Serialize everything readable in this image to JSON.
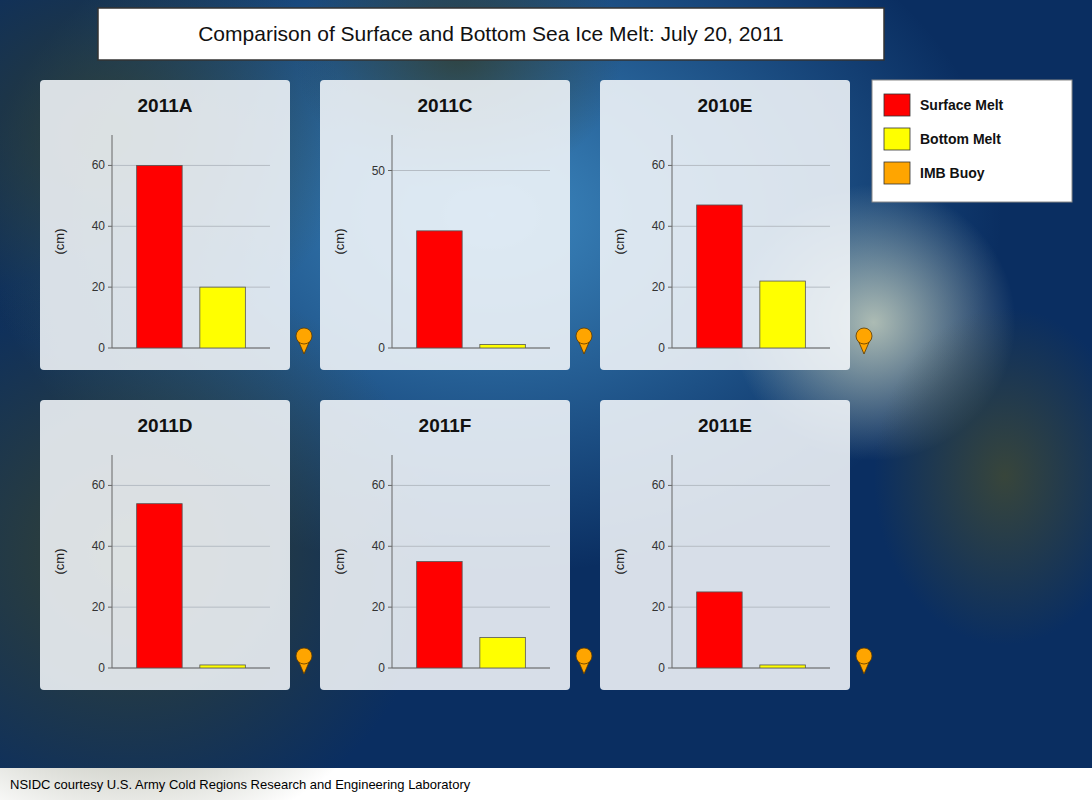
{
  "title": "Comparison of Surface and Bottom Sea Ice Melt: July 20, 2011",
  "subtitle": "NSIDC courtesy U.S. Army Cold Regions Research and Engineering Laboratory",
  "buoy": {
    "name": "IMB Buoy",
    "color": "#FFA500"
  },
  "chart_data": [
    {
      "type": "bar",
      "title": "2011A",
      "ylabel": "(cm)",
      "categories": [
        null
      ],
      "series": [
        {
          "name": "Surface Melt",
          "color": "#FF0000",
          "values": [
            60
          ]
        },
        {
          "name": "Bottom Melt",
          "color": "#FFFF00",
          "values": [
            20
          ]
        }
      ],
      "ylim": [
        0,
        70
      ],
      "yticks": [
        0,
        20,
        40,
        60
      ],
      "grid": true,
      "tick_labels": "y"
    },
    {
      "type": "bar",
      "title": "2011C",
      "ylabel": "(cm)",
      "categories": [
        null
      ],
      "series": [
        {
          "name": "Surface Melt",
          "color": "#FF0000",
          "values": [
            33
          ]
        },
        {
          "name": "Bottom Melt",
          "color": "#FFFF00",
          "values": [
            1
          ]
        }
      ],
      "ylim": [
        0,
        60
      ],
      "yticks": [
        0,
        50
      ],
      "grid": true,
      "tick_labels": "y"
    },
    {
      "type": "bar",
      "title": "2010E",
      "ylabel": "(cm)",
      "categories": [
        null
      ],
      "series": [
        {
          "name": "Surface Melt",
          "color": "#FF0000",
          "values": [
            47
          ]
        },
        {
          "name": "Bottom Melt",
          "color": "#FFFF00",
          "values": [
            22
          ]
        }
      ],
      "ylim": [
        0,
        70
      ],
      "yticks": [
        0,
        20,
        40,
        60
      ],
      "grid": true,
      "tick_labels": "y"
    },
    {
      "type": "bar",
      "title": "2011D",
      "ylabel": "(cm)",
      "categories": [
        null
      ],
      "series": [
        {
          "name": "Surface Melt",
          "color": "#FF0000",
          "values": [
            54
          ]
        },
        {
          "name": "Bottom Melt",
          "color": "#FFFF00",
          "values": [
            1
          ]
        }
      ],
      "ylim": [
        0,
        70
      ],
      "yticks": [
        0,
        20,
        40,
        60
      ],
      "grid": true,
      "tick_labels": "y"
    },
    {
      "type": "bar",
      "title": "2011F",
      "ylabel": "(cm)",
      "categories": [
        null
      ],
      "series": [
        {
          "name": "Surface Melt",
          "color": "#FF0000",
          "values": [
            35
          ]
        },
        {
          "name": "Bottom Melt",
          "color": "#FFFF00",
          "values": [
            10
          ]
        }
      ],
      "ylim": [
        0,
        70
      ],
      "yticks": [
        0,
        20,
        40,
        60
      ],
      "grid": true,
      "tick_labels": "y"
    },
    {
      "type": "bar",
      "title": "2011E",
      "ylabel": "(cm)",
      "categories": [
        null
      ],
      "series": [
        {
          "name": "Surface Melt",
          "color": "#FF0000",
          "values": [
            25
          ]
        },
        {
          "name": "Bottom Melt",
          "color": "#FFFF00",
          "values": [
            1
          ]
        }
      ],
      "ylim": [
        0,
        70
      ],
      "yticks": [
        0,
        20,
        40,
        60
      ],
      "grid": true,
      "tick_labels": "y"
    }
  ]
}
